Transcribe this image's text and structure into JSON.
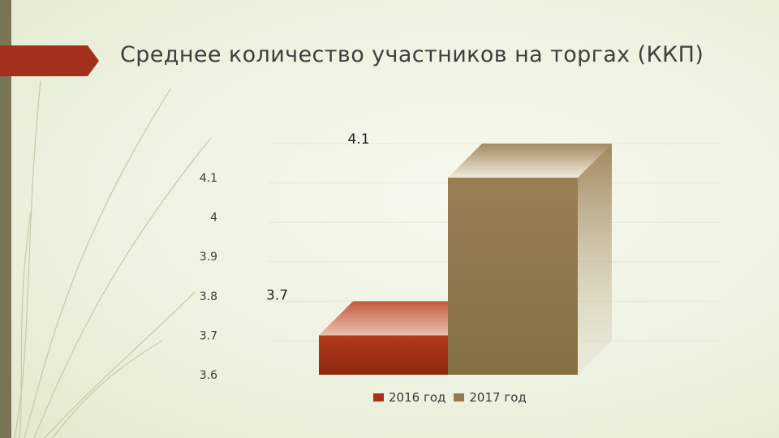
{
  "slide": {
    "title": "Среднее количество участников на торгах (ККП)"
  },
  "colors": {
    "accent_bar": "#7a7556",
    "title_tab": "#a3301d",
    "series_2016": "#a83218",
    "series_2017": "#957a50"
  },
  "chart_data": {
    "type": "bar",
    "style": "3d",
    "title": "",
    "categories": [
      ""
    ],
    "series": [
      {
        "name": "2016 год",
        "values": [
          3.7
        ],
        "color": "#a83218",
        "data_label": "3.7"
      },
      {
        "name": "2017 год",
        "values": [
          4.1
        ],
        "color": "#957a50",
        "data_label": "4.1"
      }
    ],
    "y_ticks": [
      "3.6",
      "3.7",
      "3.8",
      "3.9",
      "4",
      "4.1"
    ],
    "ylim": [
      3.6,
      4.1
    ],
    "grid": true,
    "legend": "bottom"
  }
}
